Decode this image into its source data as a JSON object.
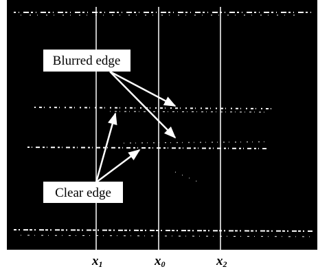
{
  "annotations": {
    "blurred": "Blurred edge",
    "clear": "Clear edge"
  },
  "positions": [
    {
      "letter": "x",
      "sub": "1"
    },
    {
      "letter": "x",
      "sub": "0"
    },
    {
      "letter": "x",
      "sub": "2"
    }
  ]
}
